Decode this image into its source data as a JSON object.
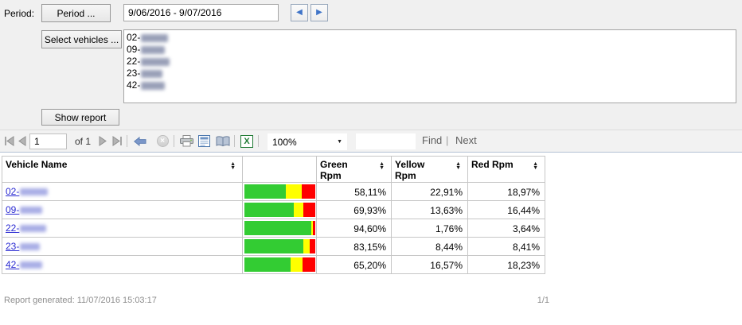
{
  "period": {
    "label": "Period:",
    "button_label": "Period ...",
    "value": "9/06/2016 - 9/07/2016"
  },
  "vehicles": {
    "button_label": "Select vehicles ...",
    "items": [
      {
        "prefix": "02-",
        "blur_width": 34
      },
      {
        "prefix": "09-",
        "blur_width": 30
      },
      {
        "prefix": "22-",
        "blur_width": 36
      },
      {
        "prefix": "23-",
        "blur_width": 27
      },
      {
        "prefix": "42-",
        "blur_width": 30
      }
    ]
  },
  "show_report": {
    "label": "Show report"
  },
  "toolbar": {
    "page_value": "1",
    "of_label": "of 1",
    "zoom_value": "100%",
    "find_label": "Find",
    "separator": "|",
    "next_label": "Next"
  },
  "report_table": {
    "headers": {
      "vehicle": "Vehicle Name",
      "green": "Green Rpm",
      "yellow": "Yellow Rpm",
      "red": "Red Rpm"
    },
    "rows": [
      {
        "vehicle_prefix": "02-",
        "blur_width": 35,
        "green": "58,11%",
        "yellow": "22,91%",
        "red": "18,97%",
        "green_pct": 58.11,
        "yellow_pct": 22.91,
        "red_pct": 18.97
      },
      {
        "vehicle_prefix": "09-",
        "blur_width": 28,
        "green": "69,93%",
        "yellow": "13,63%",
        "red": "16,44%",
        "green_pct": 69.93,
        "yellow_pct": 13.63,
        "red_pct": 16.44
      },
      {
        "vehicle_prefix": "22-",
        "blur_width": 33,
        "green": "94,60%",
        "yellow": "1,76%",
        "red": "3,64%",
        "green_pct": 94.6,
        "yellow_pct": 1.76,
        "red_pct": 3.64
      },
      {
        "vehicle_prefix": "23-",
        "blur_width": 25,
        "green": "83,15%",
        "yellow": "8,44%",
        "red": "8,41%",
        "green_pct": 83.15,
        "yellow_pct": 8.44,
        "red_pct": 8.41
      },
      {
        "vehicle_prefix": "42-",
        "blur_width": 28,
        "green": "65,20%",
        "yellow": "16,57%",
        "red": "18,23%",
        "green_pct": 65.2,
        "yellow_pct": 16.57,
        "red_pct": 18.23
      }
    ],
    "bar_colors": {
      "green": "#33cc33",
      "yellow": "#ffff00",
      "red": "#ff0000"
    }
  },
  "footer": {
    "generated": "Report generated: 11/07/2016 15:03:17",
    "page_indicator": "1/1"
  }
}
